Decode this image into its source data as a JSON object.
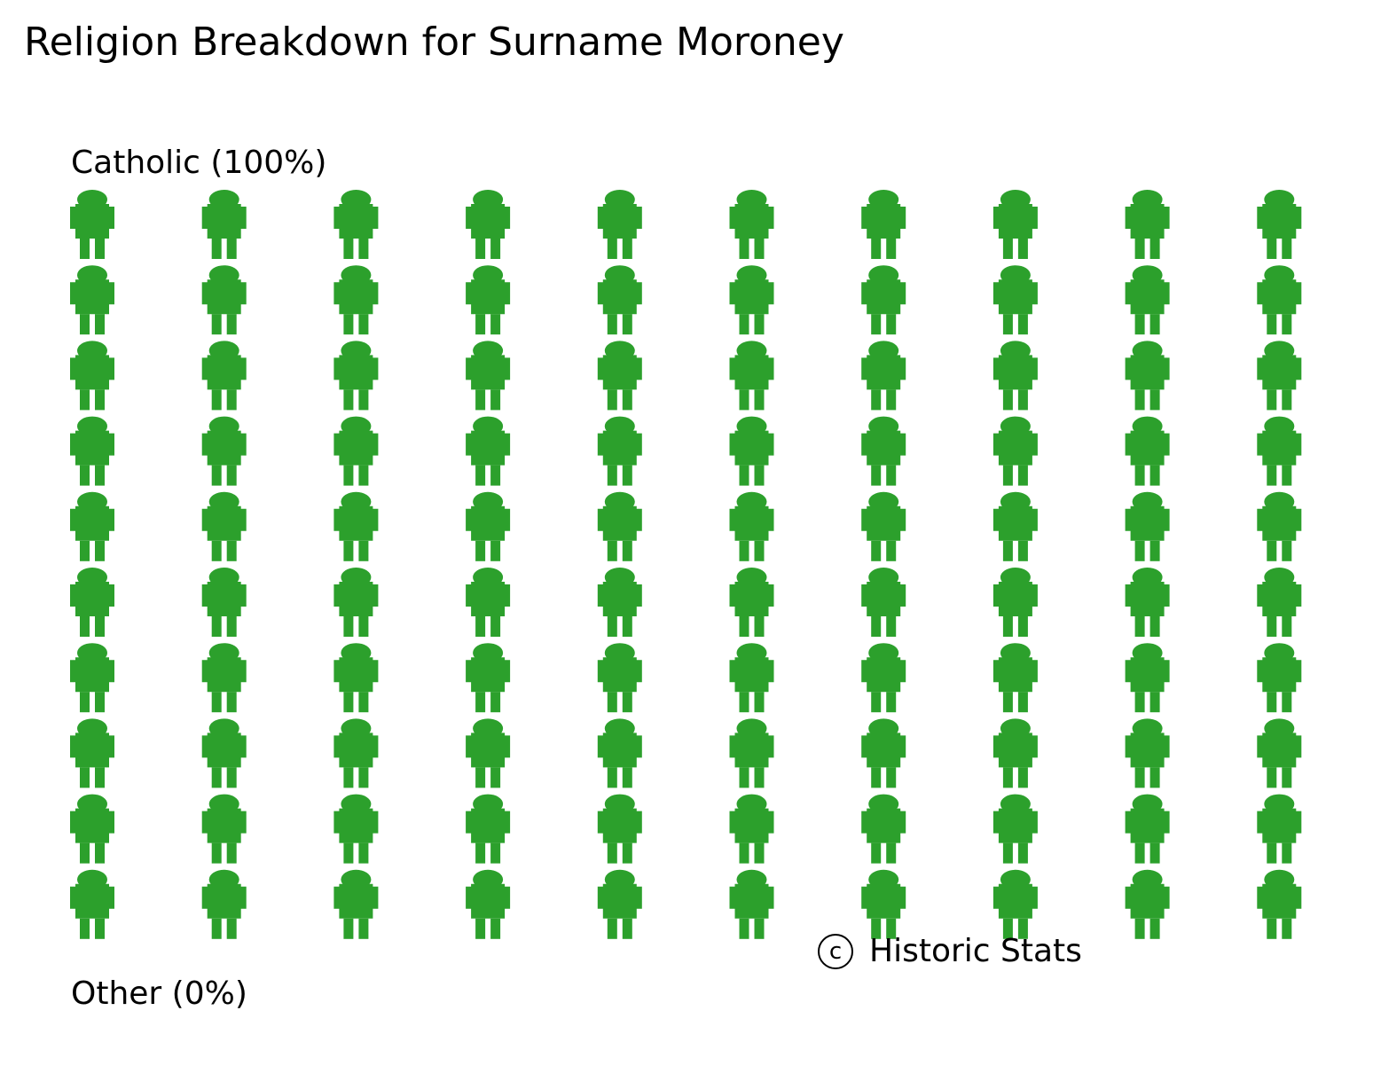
{
  "chart_data": {
    "type": "waffle",
    "title": "Religion Breakdown for Surname Moroney",
    "icon": "person-icon",
    "grid": {
      "rows": 10,
      "columns": 10
    },
    "categories": [
      {
        "label": "Catholic (100%)",
        "name": "Catholic",
        "percent": 100,
        "color": "#2ca02c"
      },
      {
        "label": "Other (0%)",
        "name": "Other",
        "percent": 0,
        "color": "#2ca02c"
      }
    ]
  },
  "credit": {
    "symbol": "c",
    "text": "Historic Stats"
  }
}
